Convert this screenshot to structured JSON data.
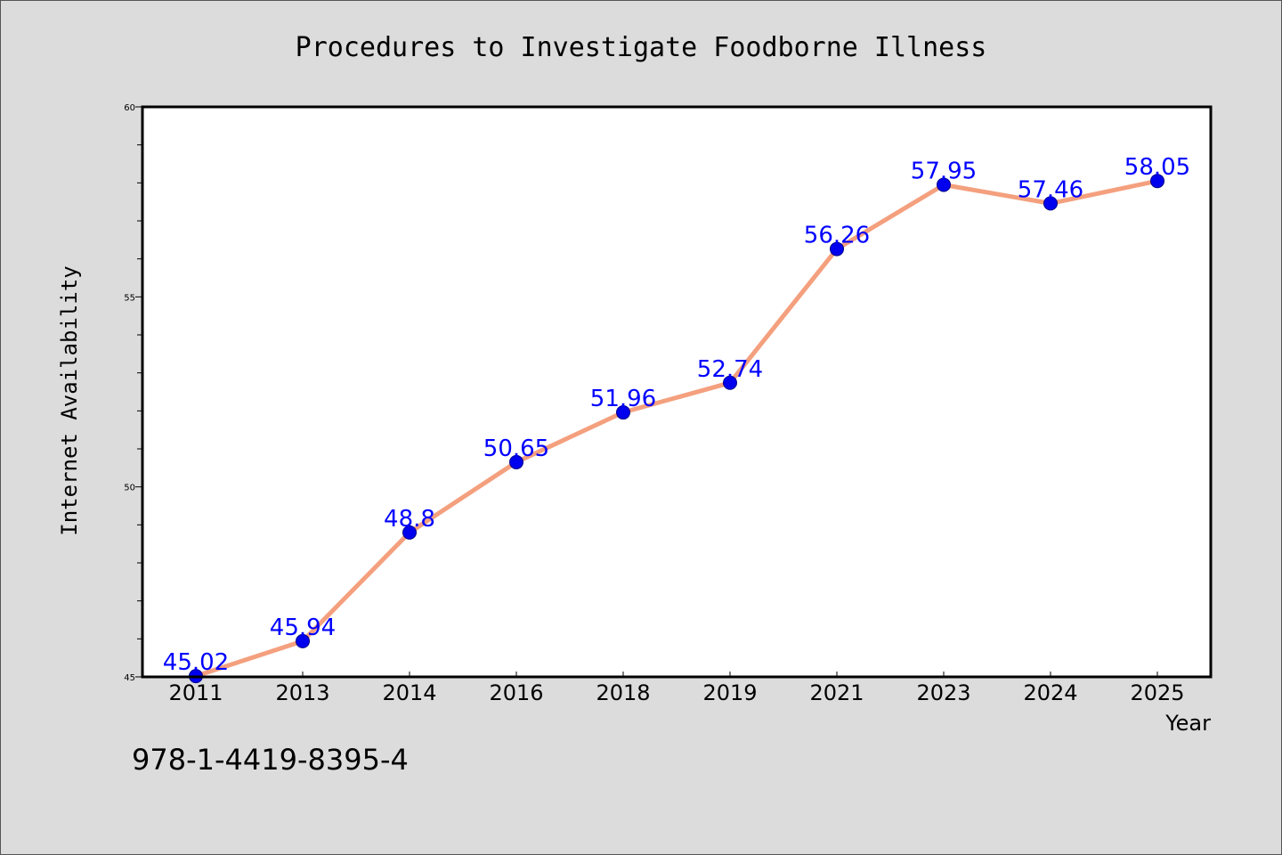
{
  "chart_data": {
    "type": "line",
    "title": "Procedures to Investigate Foodborne Illness",
    "xlabel": "Year",
    "ylabel": "Internet Availability",
    "categories": [
      "2011",
      "2013",
      "2014",
      "2016",
      "2018",
      "2019",
      "2021",
      "2023",
      "2024",
      "2025"
    ],
    "values": [
      45.02,
      45.94,
      48.8,
      50.65,
      51.96,
      52.74,
      56.26,
      57.95,
      57.46,
      58.05
    ],
    "data_labels": [
      "45.02",
      "45.94",
      "48.8",
      "50.65",
      "51.96",
      "52.74",
      "56.26",
      "57.95",
      "57.46",
      "58.05"
    ],
    "ylim": [
      45,
      60
    ],
    "yticks": [
      45,
      50,
      55,
      60
    ],
    "grid": false,
    "colors": {
      "line": "#f4a07e",
      "marker": "#0000ee",
      "label": "#0000ff",
      "background": "#dcdcdc",
      "plot": "#ffffff"
    }
  },
  "annotation": "978-1-4419-8395-4"
}
